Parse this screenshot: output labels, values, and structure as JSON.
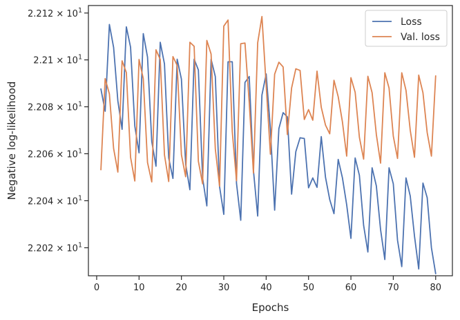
{
  "chart_data": {
    "type": "line",
    "xlabel": "Epochs",
    "ylabel": "Negative log-likelihood",
    "xlim": [
      -1.95,
      83.95
    ],
    "ylim": [
      22.0081,
      22.1232
    ],
    "y_scale": "log",
    "grid": false,
    "legend_position": "top-right",
    "x_ticks": [
      0,
      10,
      20,
      30,
      40,
      50,
      60,
      70,
      80
    ],
    "x_tick_labels": [
      "0",
      "10",
      "20",
      "30",
      "40",
      "50",
      "60",
      "70",
      "80"
    ],
    "y_ticks": [
      22.02,
      22.04,
      22.06,
      22.08,
      22.1,
      22.12
    ],
    "y_tick_mantissas": [
      "2.202",
      "2.204",
      "2.206",
      "2.208",
      "2.21",
      "2.212"
    ],
    "y_tick_base": "10",
    "y_tick_exponent": "1",
    "x": [
      1,
      2,
      3,
      4,
      5,
      6,
      7,
      8,
      9,
      10,
      11,
      12,
      13,
      14,
      15,
      16,
      17,
      18,
      19,
      20,
      21,
      22,
      23,
      24,
      25,
      26,
      27,
      28,
      29,
      30,
      31,
      32,
      33,
      34,
      35,
      36,
      37,
      38,
      39,
      40,
      41,
      42,
      43,
      44,
      45,
      46,
      47,
      48,
      49,
      50,
      51,
      52,
      53,
      54,
      55,
      56,
      57,
      58,
      59,
      60,
      61,
      62,
      63,
      64,
      65,
      66,
      67,
      68,
      69,
      70,
      71,
      72,
      73,
      74,
      75,
      76,
      77,
      78,
      79,
      80
    ],
    "series": [
      {
        "name": "Loss",
        "color": "#4c72b0",
        "values": [
          22.0876,
          22.0781,
          22.1151,
          22.1053,
          22.0825,
          22.0704,
          22.1141,
          22.1054,
          22.0718,
          22.0604,
          22.1112,
          22.1012,
          22.0652,
          22.0547,
          22.1075,
          22.0983,
          22.0582,
          22.0495,
          22.1003,
          22.0918,
          22.0555,
          22.0447,
          22.1003,
          22.0957,
          22.0497,
          22.0378,
          22.1003,
          22.0929,
          22.046,
          22.0342,
          22.0992,
          22.0992,
          22.0474,
          22.0317,
          22.0904,
          22.0929,
          22.0528,
          22.0335,
          22.085,
          22.094,
          22.0705,
          22.036,
          22.0707,
          22.0775,
          22.0757,
          22.0428,
          22.0609,
          22.0668,
          22.0665,
          22.0455,
          22.0497,
          22.0457,
          22.0673,
          22.05,
          22.0405,
          22.0345,
          22.0576,
          22.0497,
          22.0383,
          22.024,
          22.0582,
          22.0508,
          22.0295,
          22.0182,
          22.054,
          22.0463,
          22.0277,
          22.015,
          22.054,
          22.0472,
          22.0232,
          22.012,
          22.0497,
          22.042,
          22.025,
          22.011,
          22.0475,
          22.0413,
          22.02,
          22.009
        ]
      },
      {
        "name": "Val. loss",
        "color": "#dd8452",
        "values": [
          22.0532,
          22.092,
          22.0855,
          22.0622,
          22.0522,
          22.0996,
          22.0946,
          22.0585,
          22.0484,
          22.1002,
          22.092,
          22.0563,
          22.048,
          22.1043,
          22.1002,
          22.0595,
          22.0482,
          22.1014,
          22.0976,
          22.0596,
          22.0502,
          22.1075,
          22.1058,
          22.0568,
          22.0472,
          22.1083,
          22.1025,
          22.0621,
          22.0462,
          22.1144,
          22.117,
          22.0695,
          22.0485,
          22.1069,
          22.1072,
          22.0819,
          22.0518,
          22.1073,
          22.1185,
          22.0891,
          22.0598,
          22.0939,
          22.099,
          22.097,
          22.0682,
          22.088,
          22.0962,
          22.0955,
          22.0746,
          22.0788,
          22.0743,
          22.0952,
          22.0798,
          22.0722,
          22.0685,
          22.0913,
          22.0843,
          22.0735,
          22.059,
          22.0924,
          22.0862,
          22.067,
          22.0577,
          22.093,
          22.086,
          22.0682,
          22.056,
          22.0945,
          22.088,
          22.0675,
          22.058,
          22.0945,
          22.087,
          22.07,
          22.0585,
          22.0935,
          22.086,
          22.069,
          22.059,
          22.0932
        ]
      }
    ]
  }
}
